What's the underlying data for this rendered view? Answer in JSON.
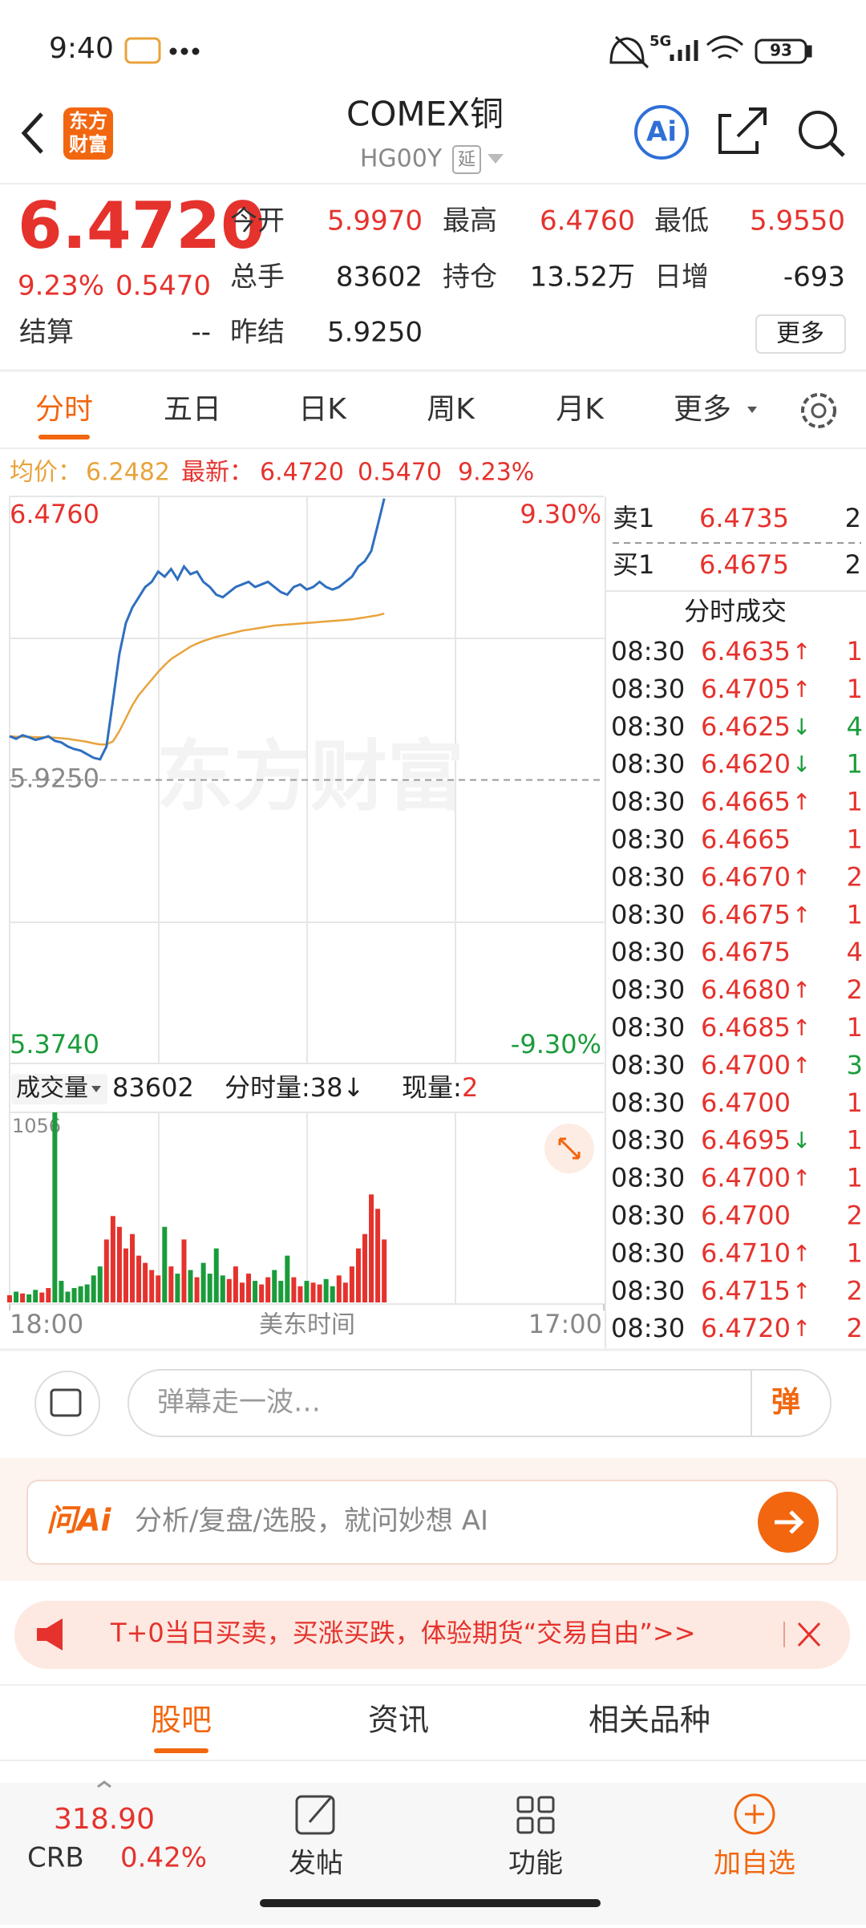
{
  "status": {
    "time": "9:40",
    "network": "5G",
    "battery": "93"
  },
  "header": {
    "logo": [
      "东方",
      "财富"
    ],
    "title": "COMEX铜",
    "code": "HG00Y",
    "delay": "延",
    "ai": "Ai"
  },
  "quote": {
    "price": "6.4720",
    "change_pct": "9.23%",
    "change": "0.5470",
    "more": "更多",
    "fields": [
      {
        "label": "今开",
        "value": "5.9970",
        "color": "#e5322d"
      },
      {
        "label": "最高",
        "value": "6.4760",
        "color": "#e5322d"
      },
      {
        "label": "最低",
        "value": "5.9550",
        "color": "#e5322d"
      },
      {
        "label": "总手",
        "value": "83602",
        "color": "#222222"
      },
      {
        "label": "持仓",
        "value": "13.52万",
        "color": "#222222"
      },
      {
        "label": "日增",
        "value": "-693",
        "color": "#222222"
      },
      {
        "label": "结算",
        "value": "--",
        "color": "#222222"
      },
      {
        "label": "昨结",
        "value": "5.9250",
        "color": "#222222"
      }
    ]
  },
  "tabs": {
    "items": [
      "分时",
      "五日",
      "日K",
      "周K",
      "月K",
      "更多"
    ],
    "active": 0
  },
  "info_bar": {
    "avg": "6.2482",
    "last": "6.4720",
    "change": "0.5470",
    "change_pct": "9.23%"
  },
  "chart_data": [
    {
      "type": "line",
      "watermark": "东方财富",
      "xlabel": "美东时间",
      "x": [
        0,
        15,
        30,
        45,
        60,
        75,
        90,
        105,
        120,
        135,
        150,
        165,
        180,
        195,
        210,
        225,
        240,
        255,
        270,
        285,
        300,
        315,
        330,
        345,
        360,
        375,
        390,
        405,
        420,
        435,
        450,
        465,
        480,
        495,
        510,
        525,
        540,
        555,
        570,
        585,
        600,
        615,
        630,
        645,
        660,
        675,
        690,
        705,
        720,
        735,
        750,
        765,
        780,
        795,
        810,
        825,
        840,
        855,
        870
      ],
      "xlim": [
        0,
        1380
      ],
      "xticks": [
        {
          "value": 0,
          "label": "18:00"
        },
        {
          "value": 1380,
          "label": "17:00"
        }
      ],
      "ylim": [
        5.374,
        6.476
      ],
      "yticks": [
        {
          "value": 6.476,
          "label": "6.4760"
        },
        {
          "value": 5.925,
          "label": "5.9250"
        },
        {
          "value": 5.374,
          "label": "5.3740"
        }
      ],
      "y2lim": [
        -9.3,
        9.3
      ],
      "y2ticks": [
        {
          "value": 9.3,
          "label": "9.30%"
        },
        {
          "value": -9.3,
          "label": "-9.30%"
        }
      ],
      "series": [
        {
          "name": "均价：",
          "color": "#e8a33b",
          "values": [
            6.01,
            6.009,
            6.009,
            6.009,
            6.008,
            6.008,
            6.008,
            6.007,
            6.006,
            6.005,
            6.003,
            6.001,
            5.999,
            5.996,
            5.994,
            5.994,
            6.0,
            6.02,
            6.045,
            6.07,
            6.09,
            6.105,
            6.12,
            6.135,
            6.148,
            6.16,
            6.168,
            6.176,
            6.184,
            6.19,
            6.195,
            6.199,
            6.203,
            6.206,
            6.209,
            6.212,
            6.215,
            6.217,
            6.219,
            6.221,
            6.223,
            6.225,
            6.226,
            6.227,
            6.228,
            6.229,
            6.23,
            6.231,
            6.232,
            6.233,
            6.234,
            6.235,
            6.236,
            6.237,
            6.239,
            6.241,
            6.243,
            6.245,
            6.2482
          ]
        },
        {
          "name": "最新：",
          "color": "#2f6fbf",
          "values": [
            6.01,
            6.005,
            6.012,
            6.008,
            6.003,
            6.006,
            6.01,
            6.001,
            5.998,
            5.99,
            5.985,
            5.982,
            5.975,
            5.968,
            5.965,
            5.99,
            6.08,
            6.17,
            6.23,
            6.26,
            6.28,
            6.3,
            6.31,
            6.33,
            6.32,
            6.335,
            6.315,
            6.34,
            6.325,
            6.33,
            6.31,
            6.3,
            6.285,
            6.28,
            6.29,
            6.3,
            6.305,
            6.31,
            6.3,
            6.305,
            6.31,
            6.3,
            6.29,
            6.285,
            6.3,
            6.305,
            6.295,
            6.3,
            6.31,
            6.3,
            6.295,
            6.3,
            6.31,
            6.32,
            6.34,
            6.35,
            6.37,
            6.42,
            6.472
          ]
        }
      ]
    },
    {
      "type": "bar",
      "title": "成交量",
      "total": "83602",
      "tick_volume": "分时量:38↓",
      "current_label": "现量:",
      "current": "2",
      "up_color": "#e5322d",
      "down_color": "#1a9c3b",
      "x": [
        0,
        15,
        30,
        45,
        60,
        75,
        90,
        105,
        120,
        135,
        150,
        165,
        180,
        195,
        210,
        225,
        240,
        255,
        270,
        285,
        300,
        315,
        330,
        345,
        360,
        375,
        390,
        405,
        420,
        435,
        450,
        465,
        480,
        495,
        510,
        525,
        540,
        555,
        570,
        585,
        600,
        615,
        630,
        645,
        660,
        675,
        690,
        705,
        720,
        735,
        750,
        765,
        780,
        795,
        810,
        825,
        840,
        855,
        870
      ],
      "xlim": [
        0,
        1380
      ],
      "ylim": [
        0,
        1056
      ],
      "yticks": [
        1056
      ],
      "values": [
        40,
        60,
        50,
        45,
        70,
        55,
        80,
        1056,
        120,
        60,
        80,
        90,
        100,
        150,
        200,
        350,
        480,
        420,
        300,
        380,
        260,
        220,
        180,
        150,
        420,
        200,
        160,
        350,
        180,
        140,
        220,
        160,
        300,
        150,
        130,
        200,
        110,
        160,
        120,
        100,
        140,
        180,
        120,
        260,
        140,
        90,
        120,
        110,
        100,
        130,
        90,
        150,
        110,
        200,
        300,
        380,
        600,
        520,
        350
      ]
    }
  ],
  "order_book": {
    "sell": {
      "label": "卖1",
      "price": "6.4735",
      "volume": "2"
    },
    "buy": {
      "label": "买1",
      "price": "6.4675",
      "volume": "2"
    },
    "title": "分时成交",
    "trades": [
      {
        "time": "08:30",
        "price": "6.4635",
        "dir": "↑",
        "volume": "1",
        "vol_color": "#e5322d"
      },
      {
        "time": "08:30",
        "price": "6.4705",
        "dir": "↑",
        "volume": "1",
        "vol_color": "#e5322d"
      },
      {
        "time": "08:30",
        "price": "6.4625",
        "dir": "↓",
        "volume": "4",
        "vol_color": "#1a9c3b"
      },
      {
        "time": "08:30",
        "price": "6.4620",
        "dir": "↓",
        "volume": "1",
        "vol_color": "#1a9c3b"
      },
      {
        "time": "08:30",
        "price": "6.4665",
        "dir": "↑",
        "volume": "1",
        "vol_color": "#e5322d"
      },
      {
        "time": "08:30",
        "price": "6.4665",
        "dir": "",
        "volume": "1",
        "vol_color": "#e5322d"
      },
      {
        "time": "08:30",
        "price": "6.4670",
        "dir": "↑",
        "volume": "2",
        "vol_color": "#e5322d"
      },
      {
        "time": "08:30",
        "price": "6.4675",
        "dir": "↑",
        "volume": "1",
        "vol_color": "#e5322d"
      },
      {
        "time": "08:30",
        "price": "6.4675",
        "dir": "",
        "volume": "4",
        "vol_color": "#e5322d"
      },
      {
        "time": "08:30",
        "price": "6.4680",
        "dir": "↑",
        "volume": "2",
        "vol_color": "#e5322d"
      },
      {
        "time": "08:30",
        "price": "6.4685",
        "dir": "↑",
        "volume": "1",
        "vol_color": "#e5322d"
      },
      {
        "time": "08:30",
        "price": "6.4700",
        "dir": "↑",
        "volume": "3",
        "vol_color": "#1a9c3b"
      },
      {
        "time": "08:30",
        "price": "6.4700",
        "dir": "",
        "volume": "1",
        "vol_color": "#e5322d"
      },
      {
        "time": "08:30",
        "price": "6.4695",
        "dir": "↓",
        "volume": "1",
        "vol_color": "#e5322d"
      },
      {
        "time": "08:30",
        "price": "6.4700",
        "dir": "↑",
        "volume": "1",
        "vol_color": "#e5322d"
      },
      {
        "time": "08:30",
        "price": "6.4700",
        "dir": "",
        "volume": "2",
        "vol_color": "#e5322d"
      },
      {
        "time": "08:30",
        "price": "6.4710",
        "dir": "↑",
        "volume": "1",
        "vol_color": "#e5322d"
      },
      {
        "time": "08:30",
        "price": "6.4715",
        "dir": "↑",
        "volume": "2",
        "vol_color": "#e5322d"
      },
      {
        "time": "08:30",
        "price": "6.4720",
        "dir": "↑",
        "volume": "2",
        "vol_color": "#e5322d"
      }
    ]
  },
  "danmaku": {
    "placeholder": "弹幕走一波…",
    "button": "弹"
  },
  "ask_ai": {
    "logo": "问Ai",
    "placeholder": "分析/复盘/选股，就问妙想 AI"
  },
  "banner": {
    "text": "T+0当日买卖，买涨买跌，体验期货“交易自由”>>"
  },
  "bottom_tabs": {
    "items": [
      "股吧",
      "资讯",
      "相关品种"
    ],
    "active": 0
  },
  "bottom_nav": {
    "index": {
      "value": "318.90",
      "name": "CRB",
      "change": "0.42%"
    },
    "items": [
      "发帖",
      "功能",
      "加自选"
    ],
    "highlight": 2
  }
}
